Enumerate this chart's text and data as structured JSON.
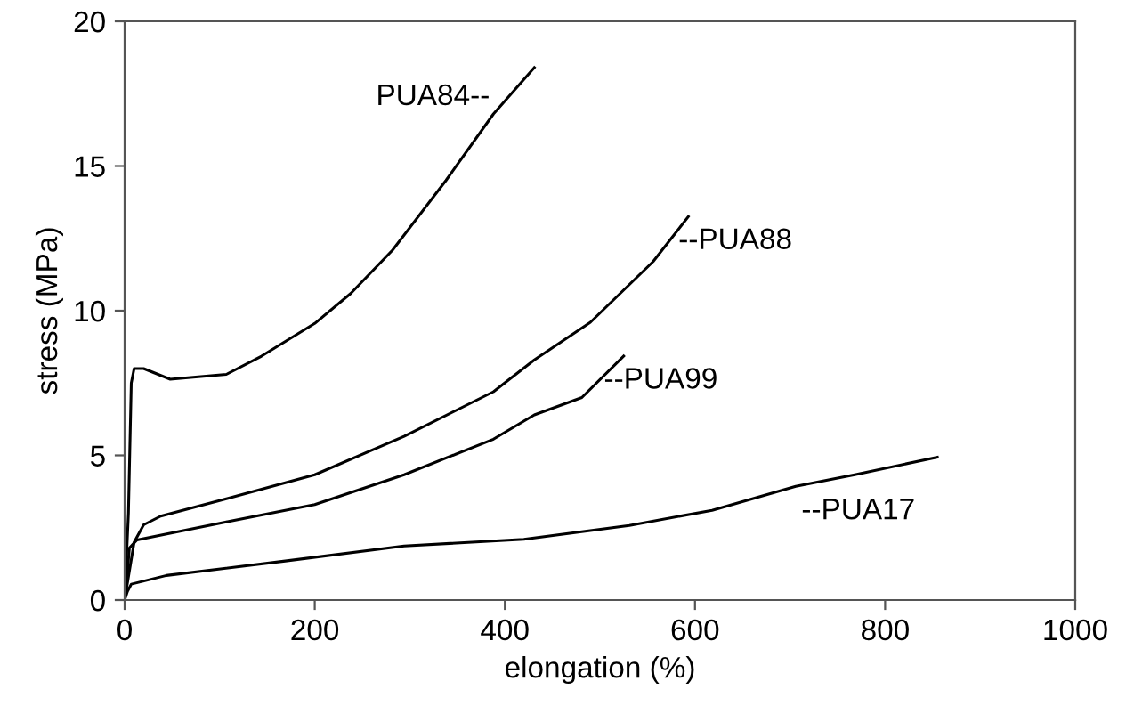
{
  "chart_data": {
    "type": "line",
    "xlabel": "elongation (%)",
    "ylabel": "stress (MPa)",
    "xlim": [
      0,
      1000
    ],
    "xticks": [
      0,
      200,
      400,
      600,
      800,
      1000
    ],
    "ylim": [
      0,
      20
    ],
    "yticks": [
      0,
      5,
      10,
      15,
      20
    ],
    "grid": false,
    "legend": false,
    "marker": "none",
    "line_style": "solid",
    "series": [
      {
        "name": "PUA84--",
        "color": "#000000",
        "x": [
          0,
          4,
          7,
          10,
          20,
          48,
          107,
          144,
          200,
          238,
          282,
          338,
          388,
          431
        ],
        "values": [
          0,
          3,
          7.5,
          8.0,
          8.0,
          7.63,
          7.8,
          8.43,
          9.56,
          10.6,
          12.1,
          14.5,
          16.8,
          18.4
        ]
      },
      {
        "name": "--PUA88",
        "color": "#000000",
        "x": [
          0,
          5,
          10,
          20,
          38,
          107,
          200,
          294,
          388,
          431,
          490,
          556,
          593
        ],
        "values": [
          0,
          1.0,
          2.0,
          2.6,
          2.9,
          3.5,
          4.33,
          5.66,
          7.2,
          8.3,
          9.6,
          11.7,
          13.25
        ]
      },
      {
        "name": "--PUA99",
        "color": "#000000",
        "x": [
          0,
          3,
          5,
          13,
          107,
          200,
          294,
          388,
          431,
          481,
          525
        ],
        "values": [
          0,
          1.0,
          1.8,
          2.08,
          2.7,
          3.3,
          4.33,
          5.56,
          6.4,
          7.0,
          8.43
        ]
      },
      {
        "name": "--PUA17",
        "color": "#000000",
        "x": [
          0,
          3,
          7,
          44,
          169,
          294,
          420,
          531,
          618,
          706,
          768,
          855
        ],
        "values": [
          0,
          0.3,
          0.55,
          0.85,
          1.35,
          1.87,
          2.1,
          2.58,
          3.1,
          3.93,
          4.33,
          4.94
        ]
      }
    ]
  }
}
